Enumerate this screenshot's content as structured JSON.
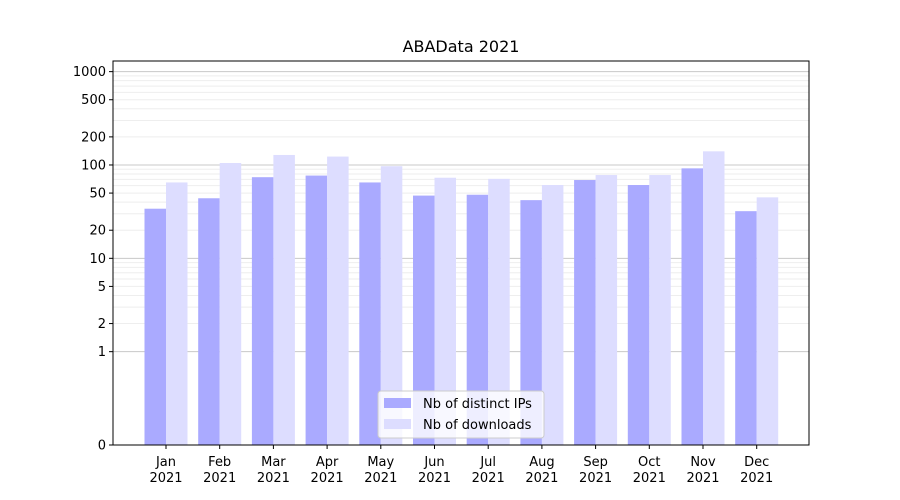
{
  "chart_data": {
    "type": "bar",
    "title": "ABAData 2021",
    "xlabel": "",
    "ylabel": "",
    "scale": "symlog",
    "ylim": [
      0,
      1300
    ],
    "yticks": [
      0,
      1,
      2,
      5,
      10,
      20,
      50,
      100,
      200,
      500,
      1000
    ],
    "ytick_labels": [
      "0",
      "1",
      "2",
      "5",
      "10",
      "20",
      "50",
      "100",
      "200",
      "500",
      "1000"
    ],
    "categories": [
      {
        "month": "Jan",
        "year": "2021"
      },
      {
        "month": "Feb",
        "year": "2021"
      },
      {
        "month": "Mar",
        "year": "2021"
      },
      {
        "month": "Apr",
        "year": "2021"
      },
      {
        "month": "May",
        "year": "2021"
      },
      {
        "month": "Jun",
        "year": "2021"
      },
      {
        "month": "Jul",
        "year": "2021"
      },
      {
        "month": "Aug",
        "year": "2021"
      },
      {
        "month": "Sep",
        "year": "2021"
      },
      {
        "month": "Oct",
        "year": "2021"
      },
      {
        "month": "Nov",
        "year": "2021"
      },
      {
        "month": "Dec",
        "year": "2021"
      }
    ],
    "series": [
      {
        "name": "Nb of distinct IPs",
        "color": "#aaaaff",
        "values": [
          34,
          44,
          74,
          77,
          65,
          47,
          48,
          42,
          69,
          61,
          92,
          32
        ]
      },
      {
        "name": "Nb of downloads",
        "color": "#ddddff",
        "values": [
          65,
          105,
          128,
          123,
          97,
          73,
          71,
          61,
          78,
          78,
          140,
          45
        ]
      }
    ],
    "grid": true,
    "legend_position": "lower-center"
  }
}
